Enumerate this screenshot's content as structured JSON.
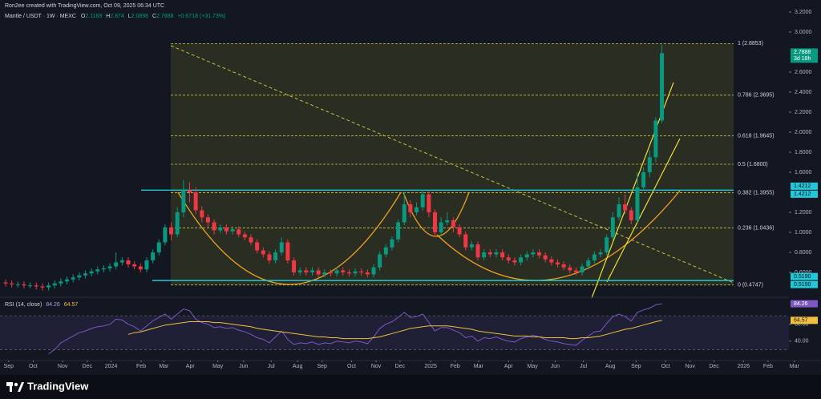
{
  "chart_data": {
    "type": "candlestick",
    "author": "Ron2ee created with TradingView.com, Oct 09, 2025 06:34 UTC",
    "symbol": "Mantle / USDT · 1W · MEXC",
    "ohlc_labels": [
      "O",
      "H",
      "L",
      "C"
    ],
    "change": "+0.6718 (+31.73%)",
    "countdown": "3d 18h",
    "up_color": "#089981",
    "down_color": "#f23645",
    "open": [
      0.5,
      0.49,
      0.48,
      0.48,
      0.47,
      0.47,
      0.46,
      0.45,
      0.47,
      0.49,
      0.51,
      0.53,
      0.55,
      0.57,
      0.59,
      0.61,
      0.63,
      0.64,
      0.66,
      0.7,
      0.72,
      0.68,
      0.66,
      0.63,
      0.72,
      0.8,
      0.9,
      1.05,
      0.98,
      1.2,
      1.42,
      1.4,
      1.22,
      1.15,
      1.1,
      1.02,
      1.05,
      1.01,
      1.03,
      0.98,
      0.95,
      0.9,
      0.82,
      0.78,
      0.72,
      0.8,
      0.9,
      0.72,
      0.6,
      0.62,
      0.6,
      0.62,
      0.58,
      0.6,
      0.59,
      0.62,
      0.6,
      0.59,
      0.61,
      0.6,
      0.58,
      0.65,
      0.78,
      0.85,
      0.93,
      1.1,
      1.28,
      1.2,
      1.25,
      1.38,
      1.2,
      1.0,
      1.1,
      1.12,
      1.05,
      0.98,
      0.85,
      0.88,
      0.75,
      0.8,
      0.78,
      0.8,
      0.75,
      0.72,
      0.7,
      0.75,
      0.78,
      0.8,
      0.77,
      0.73,
      0.7,
      0.68,
      0.65,
      0.62,
      0.6,
      0.66,
      0.72,
      0.78,
      0.8,
      0.95,
      1.15,
      1.28,
      1.22,
      1.12,
      1.45,
      1.6,
      1.75,
      2.1169
    ],
    "high": [
      0.53,
      0.52,
      0.51,
      0.51,
      0.5,
      0.5,
      0.49,
      0.5,
      0.52,
      0.54,
      0.56,
      0.58,
      0.6,
      0.62,
      0.64,
      0.66,
      0.67,
      0.69,
      0.8,
      0.75,
      0.75,
      0.71,
      0.69,
      0.75,
      0.83,
      0.93,
      1.08,
      1.1,
      1.25,
      1.52,
      1.5,
      1.45,
      1.26,
      1.18,
      1.13,
      1.08,
      1.08,
      1.06,
      1.06,
      1.01,
      0.98,
      0.93,
      0.85,
      0.81,
      0.83,
      0.95,
      0.93,
      0.75,
      0.65,
      0.65,
      0.65,
      0.65,
      0.63,
      0.63,
      0.65,
      0.65,
      0.63,
      0.64,
      0.64,
      0.63,
      0.68,
      0.81,
      0.88,
      0.96,
      1.13,
      1.4,
      1.32,
      1.3,
      1.42,
      1.41,
      1.23,
      1.15,
      1.2,
      1.15,
      1.08,
      1.01,
      0.91,
      0.91,
      0.83,
      0.83,
      0.83,
      0.83,
      0.78,
      0.75,
      0.78,
      0.81,
      0.83,
      0.83,
      0.8,
      0.76,
      0.73,
      0.71,
      0.68,
      0.65,
      0.69,
      0.75,
      0.81,
      0.83,
      0.98,
      1.2,
      1.35,
      1.38,
      1.25,
      1.6,
      1.65,
      1.82,
      2.15,
      2.874
    ],
    "low": [
      0.46,
      0.45,
      0.45,
      0.44,
      0.44,
      0.43,
      0.42,
      0.42,
      0.44,
      0.46,
      0.48,
      0.5,
      0.52,
      0.54,
      0.56,
      0.58,
      0.6,
      0.61,
      0.63,
      0.67,
      0.65,
      0.63,
      0.6,
      0.6,
      0.69,
      0.77,
      0.87,
      0.92,
      0.95,
      1.15,
      1.3,
      1.18,
      1.1,
      1.05,
      0.98,
      0.99,
      0.98,
      0.98,
      0.95,
      0.92,
      0.87,
      0.79,
      0.75,
      0.69,
      0.69,
      0.77,
      0.69,
      0.57,
      0.57,
      0.57,
      0.57,
      0.55,
      0.55,
      0.56,
      0.56,
      0.57,
      0.56,
      0.56,
      0.57,
      0.55,
      0.55,
      0.62,
      0.75,
      0.82,
      0.9,
      1.07,
      1.15,
      1.17,
      1.22,
      1.15,
      0.95,
      0.97,
      1.07,
      1.0,
      0.95,
      0.82,
      0.82,
      0.72,
      0.72,
      0.75,
      0.75,
      0.72,
      0.69,
      0.67,
      0.67,
      0.72,
      0.75,
      0.74,
      0.7,
      0.67,
      0.65,
      0.62,
      0.59,
      0.57,
      0.57,
      0.63,
      0.69,
      0.75,
      0.77,
      0.92,
      1.12,
      1.18,
      1.08,
      1.1,
      1.42,
      1.55,
      1.7,
      2.0896
    ],
    "close": [
      0.49,
      0.48,
      0.48,
      0.47,
      0.47,
      0.46,
      0.45,
      0.47,
      0.49,
      0.51,
      0.53,
      0.55,
      0.57,
      0.59,
      0.61,
      0.63,
      0.64,
      0.66,
      0.7,
      0.72,
      0.68,
      0.66,
      0.63,
      0.72,
      0.8,
      0.9,
      1.05,
      0.98,
      1.2,
      1.42,
      1.4,
      1.22,
      1.15,
      1.1,
      1.02,
      1.05,
      1.01,
      1.03,
      0.98,
      0.95,
      0.9,
      0.82,
      0.78,
      0.72,
      0.8,
      0.9,
      0.72,
      0.6,
      0.62,
      0.6,
      0.62,
      0.58,
      0.6,
      0.59,
      0.62,
      0.6,
      0.59,
      0.61,
      0.6,
      0.58,
      0.65,
      0.78,
      0.85,
      0.93,
      1.1,
      1.28,
      1.2,
      1.25,
      1.38,
      1.2,
      1.0,
      1.1,
      1.12,
      1.05,
      0.98,
      0.85,
      0.88,
      0.75,
      0.8,
      0.78,
      0.8,
      0.75,
      0.72,
      0.7,
      0.75,
      0.78,
      0.8,
      0.77,
      0.73,
      0.7,
      0.68,
      0.65,
      0.62,
      0.6,
      0.66,
      0.72,
      0.78,
      0.8,
      0.95,
      1.15,
      1.28,
      1.22,
      1.12,
      1.45,
      1.6,
      1.75,
      2.1169,
      2.7888
    ],
    "ylim": [
      0.36,
      3.32
    ],
    "yticks": [
      {
        "value": 3.2,
        "label": "3.2000"
      },
      {
        "value": 3,
        "label": "3.0000"
      },
      {
        "value": 2.6,
        "label": "2.6000"
      },
      {
        "value": 2.4,
        "label": "2.4000"
      },
      {
        "value": 2.2,
        "label": "2.2000"
      },
      {
        "value": 2,
        "label": "2.0000"
      },
      {
        "value": 1.8,
        "label": "1.8000"
      },
      {
        "value": 1.6,
        "label": "1.6000"
      },
      {
        "value": 1.2,
        "label": "1.2000"
      },
      {
        "value": 1,
        "label": "1.0000"
      },
      {
        "value": 0.8,
        "label": "0.8000"
      },
      {
        "value": 0.6,
        "label": "0.6000"
      }
    ],
    "xticks": [
      {
        "value": 0.5,
        "label": "Sep"
      },
      {
        "value": 4.5,
        "label": "Oct"
      },
      {
        "value": 9.3,
        "label": "Nov"
      },
      {
        "value": 13.3,
        "label": "Dec"
      },
      {
        "value": 17.2,
        "label": "2024"
      },
      {
        "value": 22.1,
        "label": "Feb"
      },
      {
        "value": 25.8,
        "label": "Mar"
      },
      {
        "value": 30.1,
        "label": "Apr"
      },
      {
        "value": 34.6,
        "label": "May"
      },
      {
        "value": 38.8,
        "label": "Jun"
      },
      {
        "value": 43.3,
        "label": "Jul"
      },
      {
        "value": 47.6,
        "label": "Aug"
      },
      {
        "value": 51.6,
        "label": "Sep"
      },
      {
        "value": 56.4,
        "label": "Oct"
      },
      {
        "value": 60.4,
        "label": "Nov"
      },
      {
        "value": 64.3,
        "label": "Dec"
      },
      {
        "value": 69.3,
        "label": "2025"
      },
      {
        "value": 73.3,
        "label": "Feb"
      },
      {
        "value": 77.1,
        "label": "Mar"
      },
      {
        "value": 82,
        "label": "Apr"
      },
      {
        "value": 85.9,
        "label": "May"
      },
      {
        "value": 89.6,
        "label": "Jun"
      },
      {
        "value": 94.2,
        "label": "Jul"
      },
      {
        "value": 98.6,
        "label": "Aug"
      },
      {
        "value": 102.8,
        "label": "Sep"
      },
      {
        "value": 107.6,
        "label": "Oct"
      },
      {
        "value": 111.6,
        "label": "Nov"
      },
      {
        "value": 115.5,
        "label": "Dec"
      },
      {
        "value": 120.3,
        "label": "2026"
      },
      {
        "value": 124.3,
        "label": "Feb"
      },
      {
        "value": 128.6,
        "label": "Mar"
      }
    ],
    "fib_levels": [
      {
        "value": 2.8853,
        "label": "1 (2.8853)"
      },
      {
        "value": 2.3695,
        "label": "0.786 (2.3695)"
      },
      {
        "value": 1.9645,
        "label": "0.618 (1.9645)"
      },
      {
        "value": 1.68,
        "label": "0.5 (1.6800)"
      },
      {
        "value": 1.3955,
        "label": "0.382 (1.3955)"
      },
      {
        "value": 1.0436,
        "label": "0.236 (1.0436)"
      },
      {
        "value": 0.4747,
        "label": "0 (0.4747)"
      }
    ],
    "hlines": [
      {
        "value": 1.4212,
        "label": "1.4212"
      },
      {
        "value": 0.519,
        "label": "0.5190"
      }
    ],
    "indicator": {
      "title": "RSI (14, close)",
      "color": "#7e57c2",
      "ma_color": "#f0c040",
      "ylim": [
        17,
        91
      ],
      "yticks": [
        {
          "value": 60,
          "label": "60.00"
        },
        {
          "value": 40,
          "label": "40.00"
        }
      ],
      "band": [
        30,
        70
      ],
      "values": [
        null,
        null,
        null,
        null,
        null,
        null,
        null,
        25,
        30,
        38,
        42,
        46,
        50,
        52,
        55,
        57,
        58,
        60,
        66,
        65,
        60,
        57,
        52,
        58,
        64,
        68,
        72,
        66,
        72,
        78,
        76,
        66,
        62,
        60,
        56,
        57,
        55,
        56,
        53,
        51,
        48,
        44,
        42,
        38,
        45,
        52,
        42,
        36,
        38,
        37,
        39,
        36,
        38,
        37,
        40,
        39,
        38,
        40,
        39,
        37,
        45,
        55,
        60,
        63,
        68,
        74,
        68,
        69,
        72,
        62,
        52,
        56,
        56,
        53,
        50,
        44,
        46,
        40,
        44,
        43,
        45,
        42,
        40,
        39,
        43,
        45,
        47,
        45,
        42,
        40,
        39,
        37,
        36,
        35,
        41,
        46,
        51,
        52,
        61,
        69,
        72,
        69,
        64,
        74,
        77,
        79,
        83,
        84.26
      ],
      "ma": [
        null,
        null,
        null,
        null,
        null,
        null,
        null,
        null,
        null,
        null,
        null,
        null,
        null,
        null,
        null,
        null,
        null,
        null,
        null,
        null,
        48,
        50,
        51,
        53,
        55,
        57,
        59,
        60,
        61,
        62,
        63,
        63,
        63,
        63,
        62,
        62,
        61,
        60,
        59,
        58,
        57,
        55,
        54,
        53,
        52,
        51,
        50,
        49,
        48,
        47,
        46,
        45,
        45,
        44,
        44,
        43,
        43,
        43,
        43,
        43,
        44,
        45,
        47,
        49,
        51,
        53,
        55,
        56,
        57,
        58,
        58,
        58,
        58,
        57,
        56,
        55,
        54,
        52,
        51,
        50,
        49,
        48,
        47,
        46,
        46,
        46,
        45,
        45,
        44,
        44,
        44,
        44,
        43,
        43,
        44,
        44,
        45,
        46,
        48,
        50,
        52,
        54,
        55,
        57,
        59,
        61,
        63,
        64.57
      ]
    },
    "brand": "TradingView"
  }
}
